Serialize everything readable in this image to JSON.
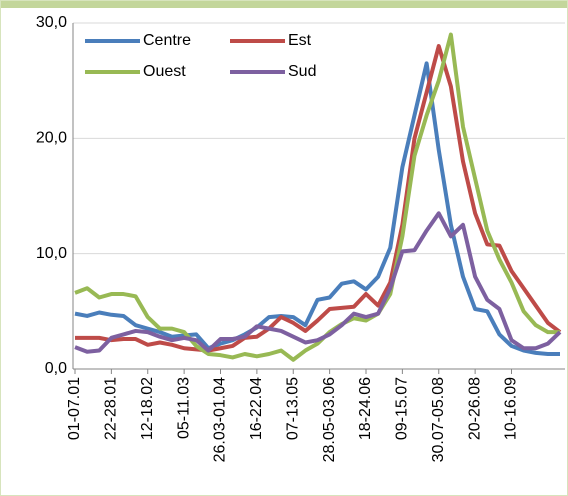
{
  "chart_data": {
    "type": "line",
    "categories": [
      "01-07.01",
      null,
      null,
      "22-28.01",
      null,
      null,
      "12-18.02",
      null,
      null,
      "05-11.03",
      null,
      null,
      "26.03-01.04",
      null,
      null,
      "16-22.04",
      null,
      null,
      "07-13.05",
      null,
      null,
      "28.05-03.06",
      null,
      null,
      "18-24.06",
      null,
      null,
      "09-15.07",
      null,
      null,
      "30.07-05.08",
      null,
      null,
      "20-26.08",
      null,
      null,
      "10-16.09",
      null,
      null,
      null,
      null
    ],
    "series": [
      {
        "name": "Centre",
        "color": "#4a7ebb",
        "values": [
          4.8,
          4.6,
          4.9,
          4.7,
          4.6,
          3.8,
          3.5,
          3.2,
          2.8,
          2.9,
          3.0,
          1.8,
          2.2,
          2.5,
          3.0,
          3.6,
          4.5,
          4.6,
          4.5,
          3.8,
          6.0,
          6.2,
          7.4,
          7.6,
          6.9,
          8.0,
          10.5,
          17.5,
          22.0,
          26.5,
          19.0,
          12.5,
          8.0,
          5.2,
          5.0,
          3.0,
          2.0,
          1.6,
          1.4,
          1.3,
          1.3
        ]
      },
      {
        "name": "Est",
        "color": "#be4b48",
        "values": [
          2.7,
          2.7,
          2.7,
          2.5,
          2.6,
          2.6,
          2.1,
          2.3,
          2.1,
          1.8,
          1.7,
          1.6,
          1.8,
          2.0,
          2.7,
          2.8,
          3.5,
          4.5,
          4.0,
          3.3,
          4.2,
          5.2,
          5.3,
          5.4,
          6.5,
          5.5,
          7.5,
          12.5,
          20.0,
          24.0,
          28.0,
          24.5,
          18.0,
          13.5,
          10.8,
          10.7,
          8.5,
          7.0,
          5.5,
          4.0,
          3.2
        ]
      },
      {
        "name": "Ouest",
        "color": "#98b954",
        "values": [
          6.6,
          7.0,
          6.2,
          6.5,
          6.5,
          6.3,
          4.5,
          3.5,
          3.5,
          3.2,
          2.0,
          1.3,
          1.2,
          1.0,
          1.3,
          1.1,
          1.3,
          1.6,
          0.8,
          1.6,
          2.2,
          3.2,
          3.9,
          4.4,
          4.2,
          4.8,
          6.5,
          11.5,
          18.5,
          22.0,
          25.0,
          29.0,
          21.0,
          16.5,
          12.0,
          9.5,
          7.5,
          5.0,
          3.8,
          3.2,
          3.2
        ]
      },
      {
        "name": "Sud",
        "color": "#7d60a0",
        "values": [
          1.9,
          1.5,
          1.6,
          2.7,
          3.0,
          3.3,
          3.2,
          2.8,
          2.5,
          2.7,
          2.5,
          1.6,
          2.6,
          2.6,
          2.8,
          3.7,
          3.5,
          3.3,
          2.8,
          2.3,
          2.5,
          3.0,
          3.8,
          4.8,
          4.5,
          4.8,
          7.0,
          10.2,
          10.3,
          12.0,
          13.5,
          11.5,
          12.5,
          8.0,
          6.0,
          5.2,
          2.5,
          1.8,
          1.8,
          2.2,
          3.2
        ]
      }
    ],
    "ylim": [
      0,
      30
    ],
    "yticks": [
      {
        "value": 0,
        "label": "0,0"
      },
      {
        "value": 10,
        "label": "10,0"
      },
      {
        "value": 20,
        "label": "20,0"
      },
      {
        "value": 30,
        "label": "30,0"
      }
    ],
    "grid": true,
    "legend": "top-left"
  }
}
